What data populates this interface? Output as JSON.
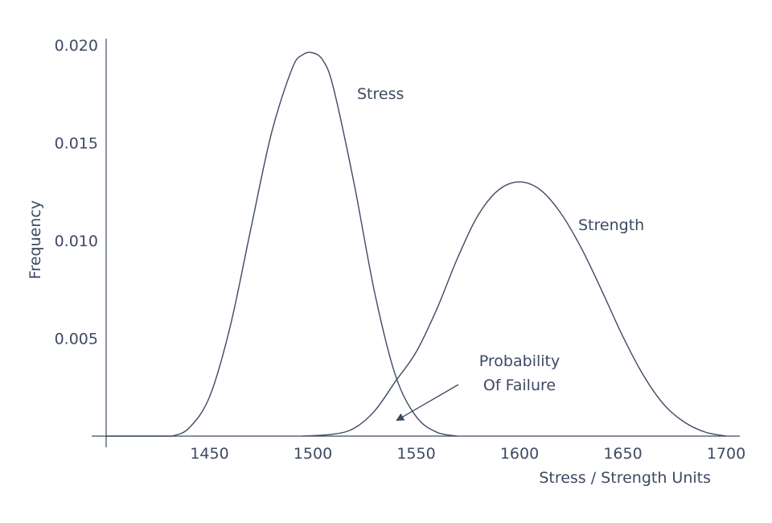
{
  "chart_data": {
    "type": "line",
    "title": "",
    "xlabel": "Stress / Strength Units",
    "ylabel": "Frequency",
    "xlim": [
      1400,
      1700
    ],
    "ylim": [
      0,
      0.02
    ],
    "x_ticks": [
      1450,
      1500,
      1550,
      1600,
      1650,
      1700
    ],
    "y_ticks": [
      0.005,
      0.01,
      0.015,
      0.02
    ],
    "y_tick_labels": [
      "0.005",
      "0.010",
      "0.015",
      "0.020"
    ],
    "grid": false,
    "series": [
      {
        "name": "Stress",
        "x": [
          1432,
          1440,
          1450,
          1460,
          1470,
          1480,
          1490,
          1495,
          1500,
          1505,
          1510,
          1520,
          1530,
          1540,
          1550,
          1560,
          1570
        ],
        "y": [
          0.0,
          0.0004,
          0.002,
          0.0056,
          0.0106,
          0.0155,
          0.0188,
          0.0195,
          0.0196,
          0.0192,
          0.0178,
          0.0129,
          0.0073,
          0.0031,
          0.001,
          0.0002,
          0.0
        ]
      },
      {
        "name": "Strength",
        "x": [
          1495,
          1510,
          1520,
          1530,
          1540,
          1550,
          1560,
          1570,
          1580,
          1590,
          1600,
          1610,
          1620,
          1630,
          1640,
          1650,
          1660,
          1670,
          1680,
          1690,
          1700
        ],
        "y": [
          0.0,
          0.0001,
          0.0004,
          0.0013,
          0.0028,
          0.0043,
          0.0065,
          0.0091,
          0.0113,
          0.0126,
          0.013,
          0.0126,
          0.0114,
          0.0096,
          0.0074,
          0.0051,
          0.0031,
          0.0016,
          0.0007,
          0.0002,
          0.0
        ]
      }
    ],
    "annotations": {
      "stress_label": "Stress",
      "strength_label": "Strength",
      "failure_line1": "Probability",
      "failure_line2": "Of Failure"
    },
    "colors": {
      "ink": "#3d4a63"
    }
  }
}
